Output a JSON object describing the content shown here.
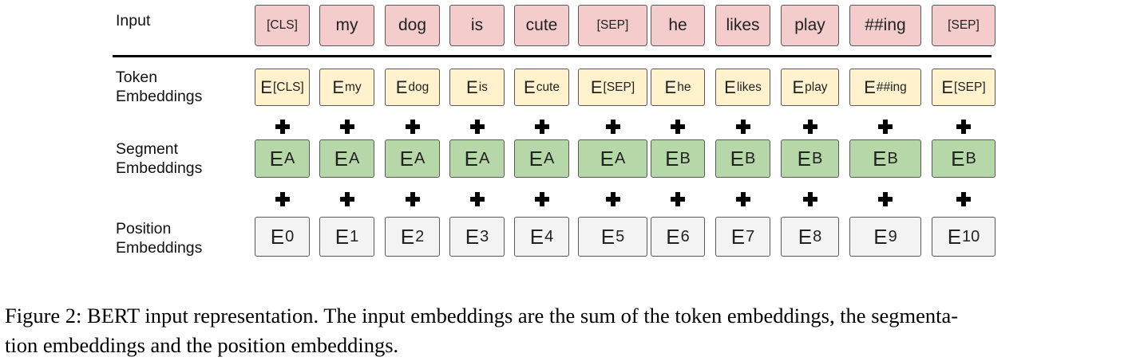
{
  "labels": {
    "input": "Input",
    "token": [
      "Token",
      "Embeddings"
    ],
    "segment": [
      "Segment",
      "Embeddings"
    ],
    "position": [
      "Position",
      "Embeddings"
    ]
  },
  "tokens": [
    {
      "input": "[CLS]",
      "token_sub": "[CLS]",
      "segment": "A",
      "position": "0"
    },
    {
      "input": "my",
      "token_sub": "my",
      "segment": "A",
      "position": "1"
    },
    {
      "input": "dog",
      "token_sub": "dog",
      "segment": "A",
      "position": "2"
    },
    {
      "input": "is",
      "token_sub": "is",
      "segment": "A",
      "position": "3"
    },
    {
      "input": "cute",
      "token_sub": "cute",
      "segment": "A",
      "position": "4"
    },
    {
      "input": "[SEP]",
      "token_sub": "[SEP]",
      "segment": "A",
      "position": "5"
    },
    {
      "input": "he",
      "token_sub": "he",
      "segment": "B",
      "position": "6"
    },
    {
      "input": "likes",
      "token_sub": "likes",
      "segment": "B",
      "position": "7"
    },
    {
      "input": "play",
      "token_sub": "play",
      "segment": "B",
      "position": "8"
    },
    {
      "input": "##ing",
      "token_sub": "##ing",
      "segment": "B",
      "position": "9"
    },
    {
      "input": "[SEP]",
      "token_sub": "[SEP]",
      "segment": "B",
      "position": "10"
    }
  ],
  "embedding_letter": "E",
  "plus_symbol": "+",
  "caption": [
    "Figure 2: BERT input representation. The input embeddings are the sum of the token embeddings, the segmenta-",
    "tion embeddings and the position embeddings."
  ],
  "colors": {
    "input": "#f4cccc",
    "token": "#fff2cc",
    "segment": "#b6d7a8",
    "position": "#f3f3f3"
  }
}
